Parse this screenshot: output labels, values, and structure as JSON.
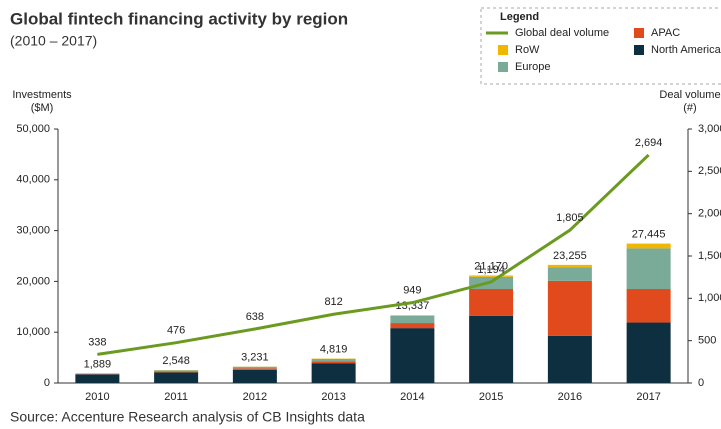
{
  "chart_data": {
    "type": "bar",
    "title": "Global fintech financing activity by region",
    "subtitle": "(2010 – 2017)",
    "source": "Source: Accenture Research analysis of CB Insights data",
    "legend_title": "Legend",
    "y_label": [
      "Investments",
      "($M)"
    ],
    "y2_label": [
      "Deal volume",
      "(#)"
    ],
    "categories": [
      "2010",
      "2011",
      "2012",
      "2013",
      "2014",
      "2015",
      "2016",
      "2017"
    ],
    "series": [
      {
        "name": "North America",
        "color": "#0d2f3f",
        "values": [
          1700,
          2100,
          2600,
          3900,
          10800,
          13200,
          9300,
          11900
        ]
      },
      {
        "name": "APAC",
        "color": "#e04a1c",
        "values": [
          50,
          150,
          300,
          350,
          1000,
          5300,
          10800,
          6600
        ]
      },
      {
        "name": "Europe",
        "color": "#7aab98",
        "values": [
          120,
          250,
          300,
          500,
          1400,
          2400,
          2700,
          8000
        ]
      },
      {
        "name": "RoW",
        "color": "#f1b600",
        "values": [
          19,
          48,
          31,
          69,
          137,
          270,
          455,
          945
        ]
      },
      {
        "name": "Global deal volume",
        "type": "line",
        "axis": "y2",
        "color": "#6a9a1f",
        "values": [
          338,
          476,
          638,
          812,
          949,
          1194,
          1805,
          2694
        ],
        "value_labels": [
          "338",
          "476",
          "638",
          "812",
          "949",
          "1,194",
          "1,805",
          "2,694"
        ]
      }
    ],
    "totals": [
      1889,
      2548,
      3231,
      4819,
      13337,
      21170,
      23255,
      27445
    ],
    "total_labels": [
      "1,889",
      "2,548",
      "3,231",
      "4,819",
      "13,337",
      "21,170",
      "23,255",
      "27,445"
    ],
    "ylim": [
      0,
      50000
    ],
    "yticks": [
      0,
      {
        "value": 10000,
        "label": "10,000"
      },
      {
        "value": 20000,
        "label": "20,000"
      },
      {
        "value": 30000,
        "label": "30,000"
      },
      {
        "value": 40000,
        "label": "40,000"
      },
      {
        "value": 50000,
        "label": "50,000"
      }
    ],
    "y2lim": [
      0,
      3000
    ],
    "y2ticks": [
      0,
      500,
      {
        "value": 1000,
        "label": "1,000"
      },
      {
        "value": 1500,
        "label": "1,500"
      },
      {
        "value": 2000,
        "label": "2,000"
      },
      {
        "value": 2500,
        "label": "2,500"
      },
      {
        "value": 3000,
        "label": "3,000"
      }
    ],
    "legend": "top-right"
  }
}
